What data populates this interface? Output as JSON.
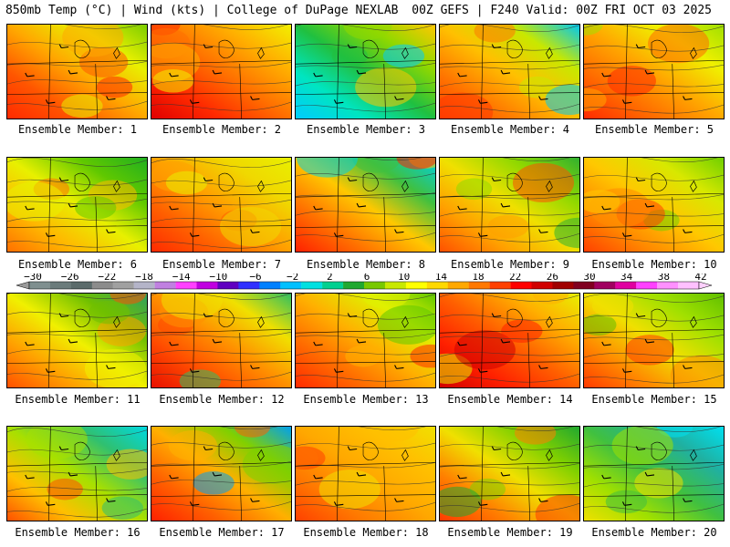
{
  "header": {
    "left": "850mb Temp (°C) | Wind (kts) | College of DuPage NEXLAB",
    "right": "00Z GEFS | F240 Valid: 00Z FRI OCT 03 2025"
  },
  "members": [
    {
      "label": "Ensemble Member: 1",
      "palette": [
        "#ff2a00",
        "#ff5500",
        "#ffa800",
        "#e8f000",
        "#7ccd00"
      ]
    },
    {
      "label": "Ensemble Member: 2",
      "palette": [
        "#e00000",
        "#ff2a00",
        "#ff7000",
        "#ffb000",
        "#f2f000"
      ]
    },
    {
      "label": "Ensemble Member: 3",
      "palette": [
        "#00ccff",
        "#00e5c0",
        "#20c040",
        "#90d800",
        "#ffc800"
      ]
    },
    {
      "label": "Ensemble Member: 4",
      "palette": [
        "#ff3a00",
        "#ff7800",
        "#ffc000",
        "#c8e800",
        "#00c8f0"
      ]
    },
    {
      "label": "Ensemble Member: 5",
      "palette": [
        "#ff2a00",
        "#ff6a00",
        "#ffa800",
        "#f0f000",
        "#a0e000"
      ]
    },
    {
      "label": "Ensemble Member: 6",
      "palette": [
        "#ff7000",
        "#ffb800",
        "#e8f000",
        "#60c800",
        "#20b020"
      ]
    },
    {
      "label": "Ensemble Member: 7",
      "palette": [
        "#ff2a00",
        "#ff6000",
        "#ffa000",
        "#f0d800",
        "#e8f000"
      ]
    },
    {
      "label": "Ensemble Member: 8",
      "palette": [
        "#ff2000",
        "#ff7000",
        "#ffc800",
        "#40c040",
        "#00d0e0"
      ]
    },
    {
      "label": "Ensemble Member: 9",
      "palette": [
        "#ff5000",
        "#ffa000",
        "#f0e000",
        "#90d800",
        "#30b030"
      ]
    },
    {
      "label": "Ensemble Member: 10",
      "palette": [
        "#ff4000",
        "#ff8a00",
        "#ffc800",
        "#d8e800",
        "#70d000"
      ]
    },
    {
      "label": "Ensemble Member: 11",
      "palette": [
        "#ff5000",
        "#ffa000",
        "#f0f000",
        "#70c000",
        "#30a060"
      ]
    },
    {
      "label": "Ensemble Member: 12",
      "palette": [
        "#e81000",
        "#ff4a00",
        "#ff9000",
        "#f0e000",
        "#30c060"
      ]
    },
    {
      "label": "Ensemble Member: 13",
      "palette": [
        "#ff2a00",
        "#ff6a00",
        "#ffb000",
        "#e0f000",
        "#60c800"
      ]
    },
    {
      "label": "Ensemble Member: 14",
      "palette": [
        "#d00000",
        "#ff2000",
        "#ff6000",
        "#ffb000",
        "#e8f000"
      ]
    },
    {
      "label": "Ensemble Member: 15",
      "palette": [
        "#ff3a00",
        "#ff8a00",
        "#f0e000",
        "#a0e000",
        "#60c000"
      ]
    },
    {
      "label": "Ensemble Member: 16",
      "palette": [
        "#ff5000",
        "#ffc000",
        "#a8e000",
        "#30c070",
        "#00d8e0"
      ]
    },
    {
      "label": "Ensemble Member: 17",
      "palette": [
        "#ff2000",
        "#ff6000",
        "#ffb000",
        "#80d000",
        "#00a0f0"
      ]
    },
    {
      "label": "Ensemble Member: 18",
      "palette": [
        "#ff4000",
        "#ff7a00",
        "#ffa800",
        "#ffc000",
        "#f0e000"
      ]
    },
    {
      "label": "Ensemble Member: 19",
      "palette": [
        "#ff3a00",
        "#ff8000",
        "#f0e000",
        "#80d000",
        "#20a830"
      ]
    },
    {
      "label": "Ensemble Member: 20",
      "palette": [
        "#f0e000",
        "#a0e000",
        "#40c040",
        "#20b0a0",
        "#00e0f0"
      ]
    }
  ],
  "colorbar": {
    "labels": [
      "−30",
      "−26",
      "−22",
      "−18",
      "−14",
      "−10",
      "−6",
      "−2",
      "2",
      "6",
      "10",
      "14",
      "18",
      "22",
      "26",
      "30",
      "34",
      "38",
      "42"
    ],
    "colors": [
      "#7f8f8f",
      "#6b7b7b",
      "#5b6b6b",
      "#8c8c8c",
      "#a0a0a0",
      "#b4b4c8",
      "#c080e0",
      "#ff40ff",
      "#c000e0",
      "#6000c0",
      "#3030ff",
      "#0080ff",
      "#00c0ff",
      "#00e0e0",
      "#00d090",
      "#20a830",
      "#78c800",
      "#c8e800",
      "#ffff00",
      "#ffd800",
      "#ffa800",
      "#ff7800",
      "#ff4000",
      "#ff0000",
      "#d00000",
      "#a00000",
      "#800020",
      "#a00060",
      "#e000a0",
      "#ff40ff",
      "#ff90ff",
      "#ffc0ff"
    ]
  }
}
